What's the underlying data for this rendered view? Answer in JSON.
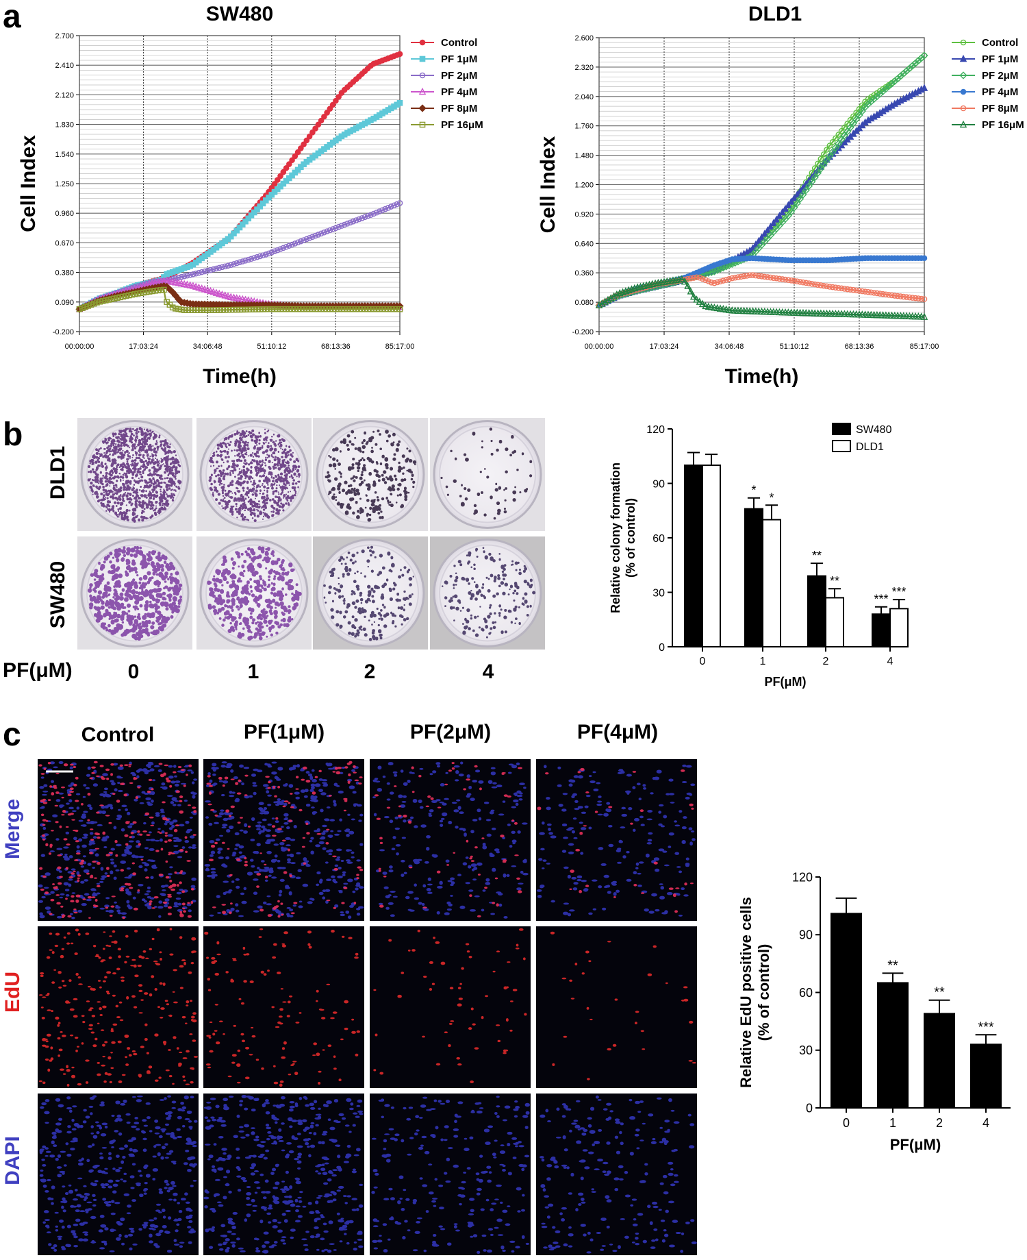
{
  "panels": {
    "a": "a",
    "b": "b",
    "c": "c"
  },
  "icons": {
    "marker_shapes": [
      "circle",
      "square",
      "open-circle",
      "open-triangle",
      "diamond",
      "open-square",
      "triangle",
      "open-diamond"
    ]
  },
  "colors": {
    "control_sw480": "#e03040",
    "pf1_sw480": "#5ec8d8",
    "pf2_sw480": "#8a6cc8",
    "pf4_sw480": "#cc55cc",
    "pf8_sw480": "#7a2e14",
    "pf16_sw480": "#8a9a30",
    "control_dld1": "#5ec040",
    "pf1_dld1": "#3848b0",
    "pf2_dld1": "#40b060",
    "pf4_dld1": "#3878d0",
    "pf8_dld1": "#f07860",
    "pf16_dld1": "#208040",
    "merge_label_red": "#e02020",
    "merge_label_blue": "#4040c0",
    "edu_label": "#e02020",
    "dapi_label": "#4040c0",
    "bar_black": "#000000",
    "bar_white": "#ffffff"
  },
  "chart_data": [
    {
      "id": "rtca_sw480",
      "type": "line",
      "title": "SW480",
      "xlabel": "Time(h)",
      "ylabel": "Cell Index",
      "xlim": [
        0,
        85.283
      ],
      "ylim": [
        -0.2,
        2.7
      ],
      "x_tick_labels": [
        "00:00:00",
        "17:03:24",
        "34:06:48",
        "51:10:12",
        "68:13:36",
        "85:17:00"
      ],
      "y_tick_labels": [
        "-0.200",
        "0.090",
        "0.380",
        "0.670",
        "0.960",
        "1.250",
        "1.540",
        "1.830",
        "2.120",
        "2.410",
        "2.700"
      ],
      "legend": "right",
      "series": [
        {
          "name": "Control",
          "marker": "circle",
          "color_key": "control_sw480",
          "x": [
            0,
            5,
            10,
            15,
            20,
            23,
            30,
            40,
            50,
            60,
            70,
            78,
            85.28
          ],
          "y": [
            0.02,
            0.12,
            0.18,
            0.25,
            0.3,
            0.33,
            0.47,
            0.72,
            1.15,
            1.65,
            2.15,
            2.42,
            2.52
          ]
        },
        {
          "name": "PF 1μM",
          "marker": "square",
          "color_key": "pf1_sw480",
          "x": [
            0,
            5,
            10,
            15,
            20,
            22,
            23,
            30,
            40,
            50,
            60,
            70,
            78,
            85.28
          ],
          "y": [
            0.02,
            0.12,
            0.18,
            0.25,
            0.29,
            0.31,
            0.36,
            0.45,
            0.72,
            1.1,
            1.45,
            1.72,
            1.88,
            2.04
          ]
        },
        {
          "name": "PF 2μM",
          "marker": "open-circle",
          "color_key": "pf2_sw480",
          "x": [
            0,
            5,
            10,
            15,
            20,
            23,
            30,
            40,
            50,
            60,
            70,
            78,
            85.28
          ],
          "y": [
            0.02,
            0.12,
            0.18,
            0.24,
            0.29,
            0.3,
            0.36,
            0.45,
            0.56,
            0.7,
            0.84,
            0.95,
            1.06
          ]
        },
        {
          "name": "PF 4μM",
          "marker": "open-triangle",
          "color_key": "pf4_sw480",
          "x": [
            0,
            5,
            10,
            15,
            20,
            23,
            30,
            40,
            50,
            60,
            70,
            78,
            85.28
          ],
          "y": [
            0.02,
            0.11,
            0.17,
            0.22,
            0.28,
            0.3,
            0.25,
            0.14,
            0.07,
            0.04,
            0.04,
            0.04,
            0.04
          ]
        },
        {
          "name": "PF 8μM",
          "marker": "diamond",
          "color_key": "pf8_sw480",
          "x": [
            0,
            5,
            10,
            15,
            20,
            23,
            25,
            27,
            30,
            40,
            50,
            60,
            70,
            78,
            85.28
          ],
          "y": [
            0.02,
            0.1,
            0.15,
            0.19,
            0.23,
            0.25,
            0.18,
            0.09,
            0.07,
            0.06,
            0.06,
            0.05,
            0.05,
            0.05,
            0.05
          ]
        },
        {
          "name": "PF 16μM",
          "marker": "open-square",
          "color_key": "pf16_sw480",
          "x": [
            0,
            5,
            10,
            15,
            20,
            22.5,
            23,
            25,
            28,
            35,
            50,
            60,
            70,
            78,
            85.28
          ],
          "y": [
            0.02,
            0.09,
            0.13,
            0.17,
            0.2,
            0.21,
            0.1,
            0.03,
            0.01,
            0.01,
            0.02,
            0.02,
            0.02,
            0.02,
            0.02
          ]
        }
      ]
    },
    {
      "id": "rtca_dld1",
      "type": "line",
      "title": "DLD1",
      "xlabel": "Time(h)",
      "ylabel": "Cell Index",
      "xlim": [
        0,
        85.283
      ],
      "ylim": [
        -0.2,
        2.6
      ],
      "x_tick_labels": [
        "00:00:00",
        "17:03:24",
        "34:06:48",
        "51:10:12",
        "68:13:36",
        "85:17:00"
      ],
      "y_tick_labels": [
        "-0.200",
        "0.080",
        "0.360",
        "0.640",
        "0.920",
        "1.200",
        "1.480",
        "1.760",
        "2.040",
        "2.320",
        "2.600"
      ],
      "legend": "right",
      "series": [
        {
          "name": "Control",
          "marker": "open-circle",
          "color_key": "control_dld1",
          "x": [
            0,
            5,
            10,
            15,
            20,
            23,
            30,
            40,
            50,
            60,
            70,
            78,
            85.28
          ],
          "y": [
            0.05,
            0.15,
            0.21,
            0.25,
            0.28,
            0.32,
            0.37,
            0.55,
            0.98,
            1.55,
            2.0,
            2.2,
            2.43
          ]
        },
        {
          "name": "PF 1μM",
          "marker": "triangle",
          "color_key": "pf1_dld1",
          "x": [
            0,
            5,
            10,
            15,
            20,
            23,
            30,
            40,
            50,
            60,
            70,
            78,
            85.28
          ],
          "y": [
            0.05,
            0.14,
            0.19,
            0.23,
            0.27,
            0.31,
            0.38,
            0.58,
            1.02,
            1.45,
            1.8,
            1.98,
            2.12
          ]
        },
        {
          "name": "PF 2μM",
          "marker": "open-diamond",
          "color_key": "pf2_dld1",
          "x": [
            0,
            5,
            10,
            15,
            20,
            23,
            30,
            40,
            50,
            60,
            70,
            78,
            85.28
          ],
          "y": [
            0.05,
            0.14,
            0.19,
            0.23,
            0.27,
            0.31,
            0.37,
            0.52,
            0.92,
            1.45,
            1.95,
            2.2,
            2.43
          ]
        },
        {
          "name": "PF 4μM",
          "marker": "circle",
          "color_key": "pf4_dld1",
          "x": [
            0,
            5,
            10,
            15,
            20,
            23,
            30,
            35,
            40,
            50,
            60,
            70,
            78,
            85.28
          ],
          "y": [
            0.05,
            0.15,
            0.21,
            0.25,
            0.29,
            0.32,
            0.43,
            0.49,
            0.5,
            0.48,
            0.48,
            0.5,
            0.5,
            0.5
          ]
        },
        {
          "name": "PF 8μM",
          "marker": "open-circle",
          "color_key": "pf8_dld1",
          "x": [
            0,
            5,
            10,
            15,
            20,
            23,
            26,
            30,
            35,
            40,
            50,
            60,
            70,
            78,
            85.28
          ],
          "y": [
            0.05,
            0.15,
            0.2,
            0.25,
            0.28,
            0.3,
            0.32,
            0.26,
            0.31,
            0.34,
            0.29,
            0.23,
            0.18,
            0.14,
            0.11
          ]
        },
        {
          "name": "PF 16μM",
          "marker": "open-triangle",
          "color_key": "pf16_dld1",
          "x": [
            0,
            5,
            10,
            15,
            20,
            22,
            23,
            25,
            28,
            35,
            50,
            60,
            70,
            78,
            85.28
          ],
          "y": [
            0.05,
            0.16,
            0.22,
            0.26,
            0.29,
            0.3,
            0.25,
            0.12,
            0.04,
            0.0,
            -0.02,
            -0.03,
            -0.04,
            -0.05,
            -0.06
          ]
        }
      ]
    },
    {
      "id": "colony_formation",
      "type": "bar",
      "title": "",
      "xlabel": "PF(μM)",
      "ylabel": "Relative colony formation\n(% of control)",
      "ylabel_lines": [
        "Relative colony formation",
        "(% of control)"
      ],
      "ylim": [
        0,
        120
      ],
      "y_tick_labels": [
        "0",
        "30",
        "60",
        "90",
        "120"
      ],
      "categories": [
        "0",
        "1",
        "2",
        "4"
      ],
      "legend": "top-right",
      "series": [
        {
          "name": "SW480",
          "fill": "black",
          "values": [
            100,
            76,
            39,
            18
          ],
          "errors": [
            7,
            6,
            7,
            4
          ],
          "significance": [
            "",
            "*",
            "**",
            "***"
          ]
        },
        {
          "name": "DLD1",
          "fill": "white",
          "values": [
            100,
            70,
            27,
            21
          ],
          "errors": [
            6,
            8,
            5,
            5
          ],
          "significance": [
            "",
            "*",
            "**",
            "***"
          ]
        }
      ]
    },
    {
      "id": "edu_positive",
      "type": "bar",
      "title": "",
      "xlabel": "PF(μM)",
      "ylabel": "Relative EdU positive cells\n(% of control)",
      "ylabel_lines": [
        "Relative EdU positive cells",
        "(% of control)"
      ],
      "ylim": [
        0,
        120
      ],
      "y_tick_labels": [
        "0",
        "30",
        "60",
        "90",
        "120"
      ],
      "categories": [
        "0",
        "1",
        "2",
        "4"
      ],
      "series": [
        {
          "name": "EdU",
          "fill": "black",
          "values": [
            101,
            65,
            49,
            33
          ],
          "errors": [
            8,
            5,
            7,
            5
          ],
          "significance": [
            "",
            "**",
            "**",
            "***"
          ]
        }
      ]
    }
  ],
  "colony_images": {
    "row_labels": [
      "DLD1",
      "SW480"
    ],
    "x_label": "PF(μM)",
    "concentrations": [
      "0",
      "1",
      "2",
      "4"
    ]
  },
  "edu_images": {
    "column_labels": [
      "Control",
      "PF(1μM)",
      "PF(2μM)",
      "PF(4μM)"
    ],
    "row_labels": [
      "Merge",
      "EdU",
      "DAPI"
    ]
  }
}
